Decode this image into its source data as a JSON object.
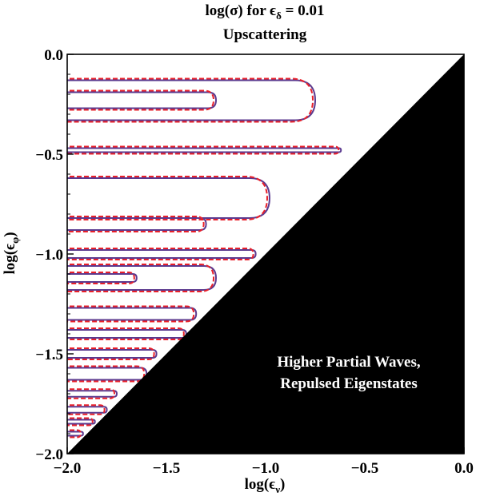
{
  "chart_data": {
    "type": "contour",
    "title": "log(σ) for ϵ",
    "title_subscript": "δ",
    "title_value": " = 0.01",
    "subtitle": "Upscattering",
    "xlabel": "log(ϵ",
    "xlabel_subscript": "ν",
    "ylabel": "log(ϵ",
    "ylabel_subscript": "φ",
    "xlim": [
      -2.0,
      0.0
    ],
    "ylim": [
      -2.0,
      0.0
    ],
    "x_ticks": [
      "-2.0",
      "-1.5",
      "-1.0",
      "-0.5",
      "0.0"
    ],
    "y_ticks": [
      "-2.0",
      "-1.5",
      "-1.0",
      "-0.5",
      "0.0"
    ],
    "x_tick_values": [
      -2.0,
      -1.5,
      -1.0,
      -0.5,
      0.0
    ],
    "y_tick_values": [
      -2.0,
      -1.5,
      -1.0,
      -0.5,
      0.0
    ],
    "shaded_region_label_line1": "Higher Partial Waves,",
    "shaded_region_label_line2": "Repulsed Eigenstates",
    "shaded_region_color": "#000000",
    "series_styles": [
      {
        "color": "#5b3a8f",
        "dash": "solid"
      },
      {
        "color": "#e8202a",
        "dash": "dashed"
      }
    ],
    "contours": [
      {
        "y": -0.23,
        "half": 0.1,
        "x_end": -0.75
      },
      {
        "y": -0.23,
        "half": 0.04,
        "x_end": -1.25
      },
      {
        "y": -0.48,
        "half": 0.01,
        "x_end": -0.62
      },
      {
        "y": -0.72,
        "half": 0.1,
        "x_end": -0.98
      },
      {
        "y": -0.85,
        "half": 0.03,
        "x_end": -1.3
      },
      {
        "y": -1.0,
        "half": 0.02,
        "x_end": -1.05
      },
      {
        "y": -1.12,
        "half": 0.06,
        "x_end": -1.25
      },
      {
        "y": -1.12,
        "half": 0.02,
        "x_end": -1.65
      },
      {
        "y": -1.3,
        "half": 0.03,
        "x_end": -1.35
      },
      {
        "y": -1.4,
        "half": 0.02,
        "x_end": -1.4
      },
      {
        "y": -1.5,
        "half": 0.02,
        "x_end": -1.55
      },
      {
        "y": -1.6,
        "half": 0.03,
        "x_end": -1.6
      },
      {
        "y": -1.7,
        "half": 0.015,
        "x_end": -1.75
      },
      {
        "y": -1.78,
        "half": 0.015,
        "x_end": -1.8
      },
      {
        "y": -1.84,
        "half": 0.01,
        "x_end": -1.86
      },
      {
        "y": -1.9,
        "half": 0.01,
        "x_end": -1.92
      }
    ]
  }
}
